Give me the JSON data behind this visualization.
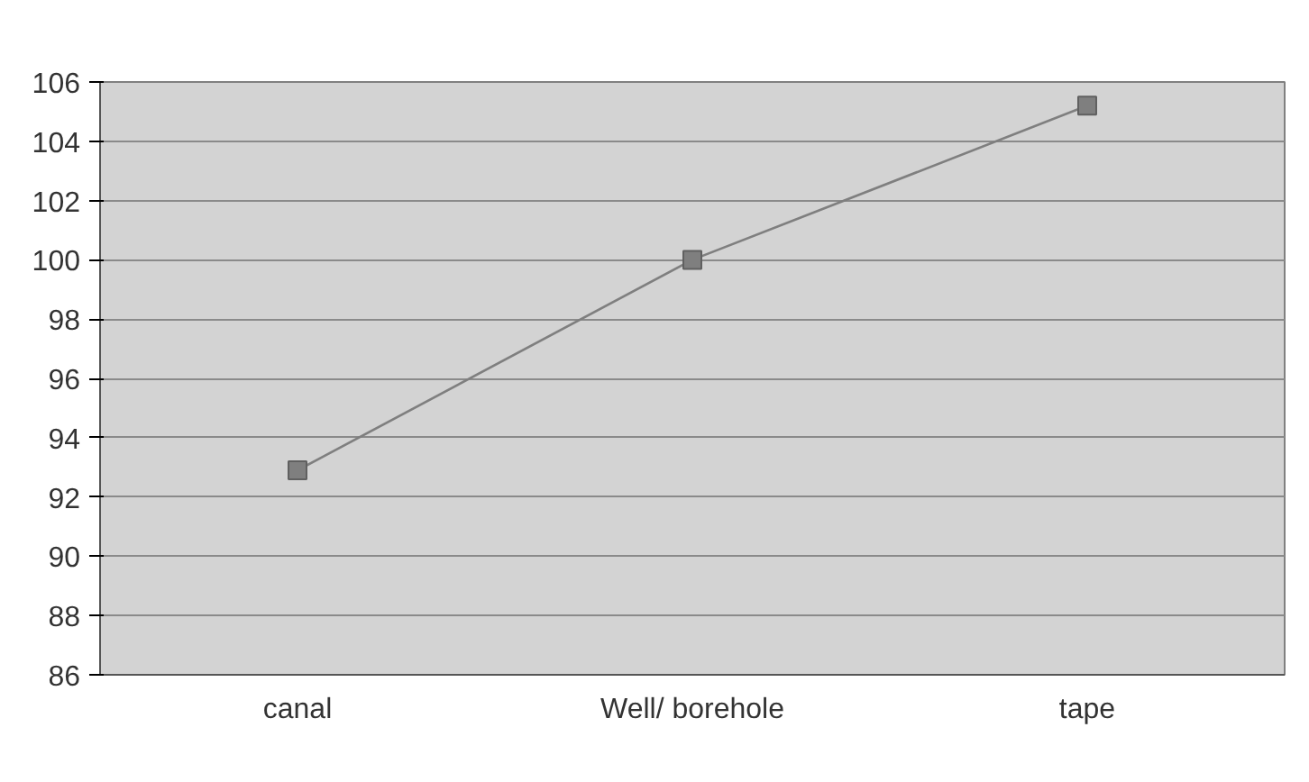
{
  "chart_data": {
    "type": "line",
    "categories": [
      "canal",
      "Well/ borehole",
      "tape"
    ],
    "series": [
      {
        "color": "#7f7f7f",
        "values": [
          92.9,
          100.0,
          105.2
        ]
      }
    ],
    "ylim": [
      86,
      106
    ],
    "yticks": [
      86,
      88,
      90,
      92,
      94,
      96,
      98,
      100,
      102,
      104,
      106
    ],
    "grid": "y",
    "marker": "square",
    "line_style": "solid"
  }
}
